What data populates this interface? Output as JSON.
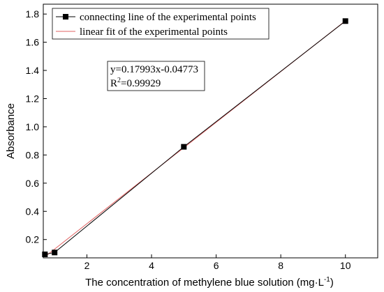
{
  "chart_data": {
    "type": "scatter",
    "xlabel_main": "The concentration of methylene blue solution (mg·L",
    "xlabel_sup": "-1",
    "xlabel_close": ")",
    "ylabel": "Absorbance",
    "xlim": [
      0.65,
      11.0
    ],
    "ylim": [
      0.07,
      1.87
    ],
    "x_ticks": [
      2,
      4,
      6,
      8,
      10
    ],
    "y_ticks": [
      0.2,
      0.4,
      0.6,
      0.8,
      1.0,
      1.2,
      1.4,
      1.6,
      1.8
    ],
    "x_tick_labels": [
      "2",
      "4",
      "6",
      "8",
      "10"
    ],
    "y_tick_labels": [
      "0.2",
      "0.4",
      "0.6",
      "0.8",
      "1.0",
      "1.2",
      "1.4",
      "1.6",
      "1.8"
    ],
    "grid": false,
    "legend_position": "top-left",
    "series": [
      {
        "name": "connecting line of the experimental points",
        "x": [
          0.7,
          1.0,
          5.0,
          10.0
        ],
        "y": [
          0.095,
          0.108,
          0.858,
          1.75
        ],
        "color": "#000000",
        "marker": "square"
      },
      {
        "name": "linear fit of the experimental points",
        "color": "#e06060",
        "slope": 0.17993,
        "intercept": -0.04773,
        "x_range": [
          0.7,
          10.0
        ]
      }
    ],
    "annotation": {
      "equation": "y=0.17993x-0.04773",
      "r2_prefix": "R",
      "r2_sup": "2",
      "r2_value": "=0.99929"
    }
  }
}
